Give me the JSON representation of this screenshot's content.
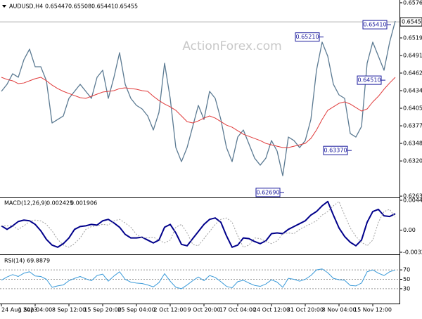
{
  "chart_data": [
    {
      "type": "line",
      "symbol": "AUDUSD,H4",
      "ohlc": [
        0.65447,
        0.65508,
        0.65441,
        0.65455
      ],
      "watermark": "ActionForex.com",
      "categories": [
        "24 Aug 2023",
        null,
        null,
        null,
        null,
        null,
        "1 Sep 04:00",
        null,
        null,
        null,
        null,
        null,
        "8 Sep 12:00",
        null,
        null,
        null,
        null,
        null,
        "15 Sep 20:00",
        null,
        null,
        null,
        null,
        null,
        "25 Sep 04:00",
        null,
        null,
        null,
        null,
        null,
        "2 Oct 12:00",
        null,
        null,
        null,
        null,
        null,
        "9 Oct 20:00",
        null,
        null,
        null,
        null,
        null,
        "17 Oct 04:00",
        null,
        null,
        null,
        null,
        null,
        "24 Oct 12:00",
        null,
        null,
        null,
        null,
        null,
        "31 Oct 20:00",
        null,
        null,
        null,
        null,
        null,
        "8 Nov 04:00",
        null,
        null,
        null,
        null,
        null,
        "15 Nov 12:00",
        null,
        null,
        null,
        null
      ],
      "series": [
        {
          "color": "#5b7a92",
          "values": [
            0.64329,
            0.64443,
            0.64614,
            0.64557,
            0.64842,
            0.65013,
            0.64728,
            0.64728,
            0.645,
            0.63816,
            0.63873,
            0.6393,
            0.64215,
            0.64329,
            0.64443,
            0.64329,
            0.64215,
            0.64557,
            0.64671,
            0.64215,
            0.64557,
            0.64956,
            0.64443,
            0.64215,
            0.64101,
            0.64044,
            0.6393,
            0.63702,
            0.63987,
            0.64785,
            0.64215,
            0.63417,
            0.63189,
            0.63417,
            0.63759,
            0.64101,
            0.63873,
            0.64329,
            0.64215,
            0.63873,
            0.63417,
            0.63189,
            0.63588,
            0.63702,
            0.63474,
            0.63246,
            0.63132,
            0.63246,
            0.63531,
            0.6336,
            0.62961,
            0.63588,
            0.63531,
            0.63417,
            0.63531,
            0.63873,
            0.64671,
            0.65127,
            0.64899,
            0.64443,
            0.64272,
            0.64215,
            0.63645,
            0.63588,
            0.63759,
            0.64785,
            0.65127,
            0.64899,
            0.64671,
            0.65127,
            0.65469
          ]
        },
        {
          "color": "#e03a3a",
          "values": [
            0.64557,
            0.64522,
            0.645,
            0.64454,
            0.64465,
            0.645,
            0.64534,
            0.64557,
            0.645,
            0.64431,
            0.64374,
            0.64329,
            0.64294,
            0.6426,
            0.64226,
            0.64215,
            0.64249,
            0.64283,
            0.64317,
            0.64329,
            0.6434,
            0.64374,
            0.64386,
            0.64374,
            0.64363,
            0.6434,
            0.64329,
            0.64249,
            0.6418,
            0.64123,
            0.64078,
            0.64021,
            0.6393,
            0.63838,
            0.63816,
            0.6385,
            0.63895,
            0.6393,
            0.63895,
            0.63838,
            0.63781,
            0.63747,
            0.6369,
            0.63633,
            0.63599,
            0.63565,
            0.63531,
            0.63485,
            0.63462,
            0.63439,
            0.63417,
            0.63417,
            0.63439,
            0.63462,
            0.63485,
            0.63565,
            0.63702,
            0.63873,
            0.64021,
            0.64078,
            0.64135,
            0.64158,
            0.64123,
            0.64066,
            0.64009,
            0.64044,
            0.64158,
            0.64249,
            0.64363,
            0.64465,
            0.64557
          ]
        }
      ],
      "last_price": 0.65455,
      "annotations": [
        {
          "label": "0.62690",
          "value": 0.6269,
          "x": 50
        },
        {
          "label": "0.63370",
          "value": 0.6337,
          "x": 62
        },
        {
          "label": "0.64510",
          "value": 0.6451,
          "x": 68
        },
        {
          "label": "0.65210",
          "value": 0.6521,
          "x": 57
        },
        {
          "label": "0.65410",
          "value": 0.6541,
          "x": 69
        }
      ],
      "ylim": [
        0.6262,
        0.6581
      ],
      "yticks": [
        0.65765,
        0.65195,
        {
          "value": 0.6491,
          "label": "0.64910"
        },
        0.64625,
        {
          "value": 0.6434,
          "label": "0.64340"
        },
        0.64055,
        {
          "value": 0.6377,
          "label": "0.63770"
        },
        0.63485,
        {
          "value": 0.632,
          "label": "0.63200"
        },
        {
          "value": 0.6263,
          "label": "0.62630"
        }
      ]
    },
    {
      "type": "line",
      "title": "MACD(12,26,9)",
      "readings": [
        0.002425,
        0.001906
      ],
      "series": [
        {
          "color": "#00008b",
          "values": [
            0.000636,
            0.000106,
            0.000636,
            0.001272,
            0.001484,
            0.001378,
            0.000848,
            -0.000106,
            -0.001378,
            -0.002226,
            -0.002544,
            -0.002014,
            -0.001166,
            0.000106,
            0.00053,
            0.000636,
            0.000848,
            0.000742,
            0.001378,
            0.00159,
            0.00106,
            0.000424,
            -0.000636,
            -0.001166,
            -0.001166,
            -0.00106,
            -0.001484,
            -0.001908,
            -0.001484,
            0.000424,
            0.000848,
            -0.000424,
            -0.00212,
            -0.002332,
            -0.001272,
            -0.000212,
            0.000848,
            0.00159,
            0.001802,
            0.001166,
            -0.000848,
            -0.002544,
            -0.002226,
            -0.001166,
            -0.001272,
            -0.001696,
            -0.002014,
            -0.00159,
            -0.00053,
            -0.000424,
            -0.00053,
            0.000106,
            0.00053,
            0.000954,
            0.001378,
            0.002226,
            0.002756,
            0.003604,
            0.00424,
            0.002226,
            0.000318,
            -0.000954,
            -0.001802,
            -0.002332,
            -0.001484,
            0.001166,
            0.002756,
            0.003074,
            0.00212,
            0.002014,
            0.002425
          ]
        },
        {
          "color": "#a0a0a0",
          "style": "dotted",
          "values": [
            0.000636,
            0.000636,
            0.000636,
            0.000106,
            0.000636,
            0.001272,
            0.001484,
            0.001378,
            0.000848,
            -0.000106,
            -0.001378,
            -0.002226,
            -0.002544,
            -0.002014,
            -0.001166,
            0.000106,
            0.00053,
            0.000636,
            0.000848,
            0.000742,
            0.001378,
            0.00159,
            0.00106,
            0.000424,
            -0.000636,
            -0.001166,
            -0.001166,
            -0.00106,
            -0.001484,
            -0.001908,
            -0.001484,
            0.000424,
            0.000848,
            -0.000424,
            -0.00212,
            -0.002332,
            -0.001272,
            -0.000212,
            0.000848,
            0.00159,
            0.001802,
            0.001166,
            -0.000848,
            -0.002544,
            -0.002226,
            -0.001166,
            -0.001272,
            -0.001696,
            -0.002014,
            -0.00159,
            -0.00053,
            -0.000424,
            -0.00053,
            0.000106,
            0.00053,
            0.000954,
            0.001378,
            0.002226,
            0.002756,
            0.003604,
            0.00424,
            0.002226,
            0.000318,
            -0.000954,
            -0.001802,
            -0.002332,
            -0.001484,
            0.001166,
            0.002756,
            0.003074,
            0.001906
          ]
        }
      ],
      "ylim": [
        -0.003288,
        0.004427
      ],
      "yticks": [
        0.004427,
        {
          "value": 0,
          "label": "0.00"
        },
        -0.003288
      ]
    },
    {
      "type": "line",
      "title": "RSI(14)",
      "readings": [
        69.8879
      ],
      "series": [
        {
          "color": "#3a9ad9",
          "values": [
            48,
            55,
            60,
            56,
            63,
            66,
            57,
            56,
            50,
            33,
            36,
            38,
            47,
            52,
            56,
            51,
            47,
            58,
            61,
            46,
            57,
            66,
            50,
            44,
            42,
            41,
            38,
            34,
            43,
            62,
            46,
            33,
            30,
            38,
            47,
            55,
            47,
            58,
            54,
            45,
            35,
            32,
            45,
            48,
            42,
            37,
            35,
            40,
            49,
            44,
            33,
            52,
            50,
            46,
            50,
            58,
            70,
            72,
            64,
            52,
            49,
            48,
            37,
            36,
            42,
            66,
            70,
            63,
            58,
            66,
            69.8879
          ]
        }
      ],
      "ylim": [
        0,
        100
      ],
      "yticks": [
        30,
        50,
        70
      ],
      "grid": true
    }
  ]
}
